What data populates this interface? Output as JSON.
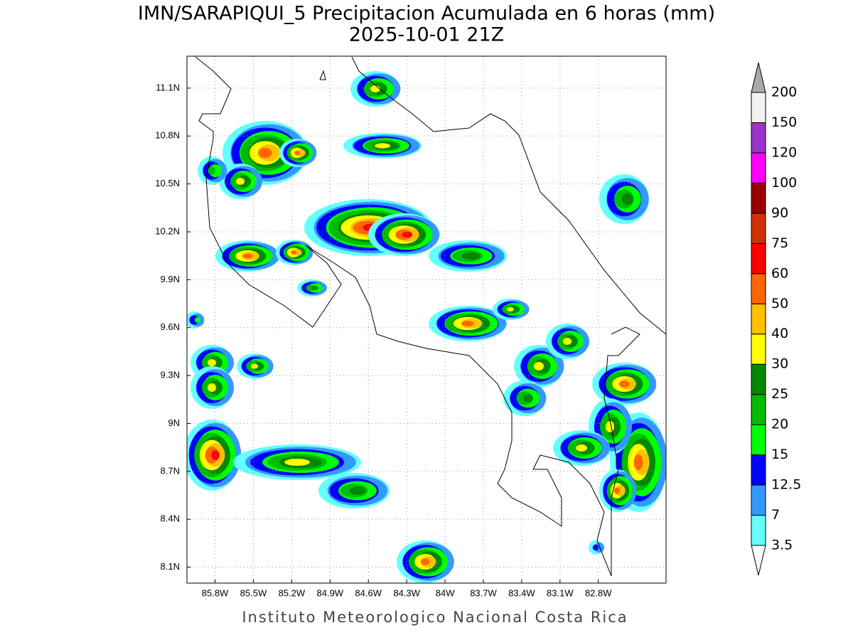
{
  "title": "IMN/SARAPIQUI_5 Precipitacion Acumulada en 6 horas (mm)",
  "subtitle": "2025-10-01 21Z",
  "footer": "Instituto Meteorologico Nacional Costa Rica",
  "map": {
    "lonlim": [
      -86.02,
      -82.27
    ],
    "latlim": [
      8.0,
      11.3
    ],
    "grid": true,
    "lonticks": [
      {
        "value": -85.8,
        "label": "85.8W"
      },
      {
        "value": -85.5,
        "label": "85.5W"
      },
      {
        "value": -85.2,
        "label": "85.2W"
      },
      {
        "value": -84.9,
        "label": "84.9W"
      },
      {
        "value": -84.6,
        "label": "84.6W"
      },
      {
        "value": -84.3,
        "label": "84.3W"
      },
      {
        "value": -84,
        "label": "84W"
      },
      {
        "value": -83.7,
        "label": "83.7W"
      },
      {
        "value": -83.4,
        "label": "83.4W"
      },
      {
        "value": -83.1,
        "label": "83.1W"
      },
      {
        "value": -82.8,
        "label": "82.8W"
      }
    ],
    "latticks": [
      {
        "value": 8.1,
        "label": "8.1N"
      },
      {
        "value": 8.4,
        "label": "8.4N"
      },
      {
        "value": 8.7,
        "label": "8.7N"
      },
      {
        "value": 9,
        "label": "9N"
      },
      {
        "value": 9.3,
        "label": "9.3N"
      },
      {
        "value": 9.6,
        "label": "9.6N"
      },
      {
        "value": 9.9,
        "label": "9.9N"
      },
      {
        "value": 10.2,
        "label": "10.2N"
      },
      {
        "value": 10.5,
        "label": "10.5N"
      },
      {
        "value": 10.8,
        "label": "10.8N"
      },
      {
        "value": 11.1,
        "label": "11.1N"
      }
    ]
  },
  "colorbar": {
    "levels": [
      3.5,
      7,
      12.5,
      15,
      20,
      25,
      30,
      40,
      50,
      60,
      75,
      90,
      100,
      120,
      150,
      200
    ],
    "colors": [
      "#66ffff",
      "#3399ff",
      "#0000ff",
      "#00ff00",
      "#00bb00",
      "#008800",
      "#ffff00",
      "#ffc000",
      "#ff6600",
      "#ff0000",
      "#cc3300",
      "#990000",
      "#ff00ff",
      "#9933cc",
      "#f2f2f2"
    ],
    "over_color": "#aaaaaa",
    "under_color": "#ffffff"
  }
}
